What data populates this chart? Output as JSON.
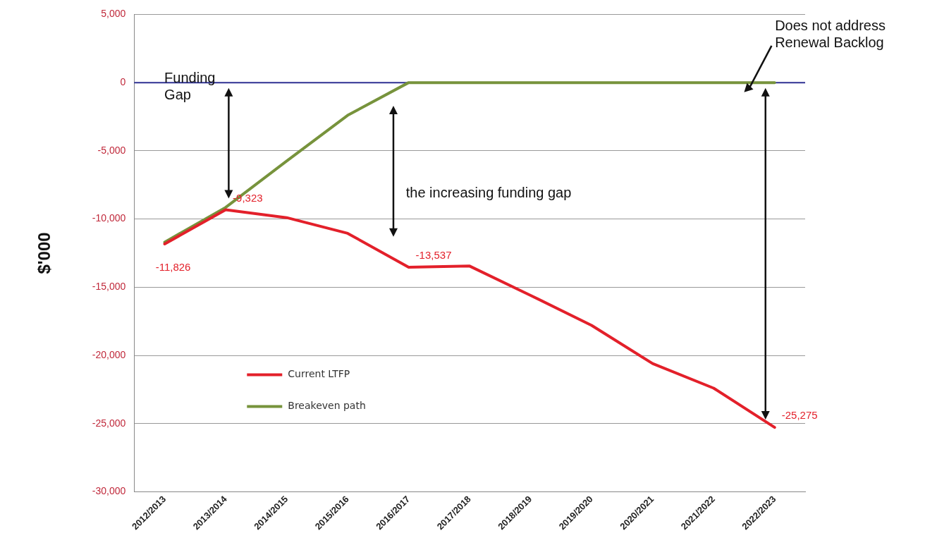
{
  "chart_data": {
    "type": "line",
    "ylabel": "$'000",
    "categories": [
      "2012/2013",
      "2013/2014",
      "2014/2015",
      "2015/2016",
      "2016/2017",
      "2017/2018",
      "2018/2019",
      "2019/2020",
      "2020/2021",
      "2021/2022",
      "2022/2023"
    ],
    "series": [
      {
        "name": "Current LTFP",
        "color": "#e3202a",
        "values": [
          -11826,
          -9323,
          -9900,
          -11050,
          -13537,
          -13450,
          -15600,
          -17800,
          -20600,
          -22400,
          -25275
        ],
        "value_labels": [
          "-11,826",
          "-9,323",
          null,
          null,
          "-13,537",
          null,
          null,
          null,
          null,
          null,
          "-25,275"
        ]
      },
      {
        "name": "Breakeven path",
        "color": "#77933c",
        "values": [
          -11700,
          -9150,
          -5750,
          -2400,
          0,
          0,
          0,
          0,
          0,
          0,
          0
        ]
      }
    ],
    "ylim": [
      -30000,
      5000
    ],
    "yticks": [
      {
        "value": -30000,
        "label": "-30,000"
      },
      {
        "value": -25000,
        "label": "-25,000"
      },
      {
        "value": -20000,
        "label": "-20,000"
      },
      {
        "value": -15000,
        "label": "-15,000"
      },
      {
        "value": -10000,
        "label": "-10,000"
      },
      {
        "value": -5000,
        "label": "-5,000"
      },
      0,
      {
        "value": 5000,
        "label": "5,000"
      }
    ],
    "grid": "y",
    "legend": "bottom left",
    "marker": "none",
    "line_style": "solid",
    "ref_lines": [
      {
        "axis": "y",
        "value": 0,
        "color": "#2e3192"
      }
    ],
    "annotations": [
      "Funding Gap",
      "the increasing funding gap",
      "Does not address Renewal Backlog"
    ]
  }
}
